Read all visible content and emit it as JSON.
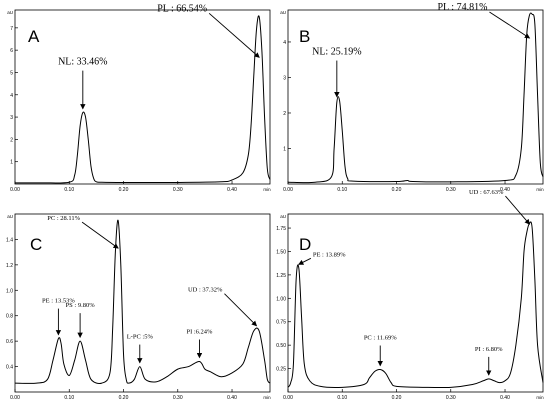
{
  "figure": {
    "panels": [
      {
        "letter": "A",
        "unit": "aU",
        "x_end_label": "min"
      },
      {
        "letter": "B",
        "unit": "aU",
        "x_end_label": "min"
      },
      {
        "letter": "C",
        "unit": "aU",
        "x_end_label": "min"
      },
      {
        "letter": "D",
        "unit": "aU",
        "x_end_label": "min"
      }
    ]
  },
  "chart_data": [
    {
      "type": "line",
      "panel": "A",
      "xlim": [
        0,
        0.47
      ],
      "ylim": [
        0,
        7.8
      ],
      "xticks": [
        "0.00",
        "0.10",
        "0.20",
        "0.30",
        "0.40"
      ],
      "yticks": [
        "1",
        "2",
        "3",
        "4",
        "5",
        "6",
        "7"
      ],
      "x": [
        0.0,
        0.05,
        0.1,
        0.11,
        0.115,
        0.12,
        0.125,
        0.13,
        0.135,
        0.14,
        0.145,
        0.15,
        0.16,
        0.2,
        0.3,
        0.38,
        0.4,
        0.42,
        0.43,
        0.435,
        0.44,
        0.445,
        0.45,
        0.455,
        0.46,
        0.465,
        0.47
      ],
      "y": [
        0.05,
        0.05,
        0.08,
        0.4,
        1.3,
        2.6,
        3.2,
        3.0,
        2.0,
        0.8,
        0.25,
        0.1,
        0.08,
        0.07,
        0.07,
        0.1,
        0.18,
        0.5,
        1.3,
        2.6,
        4.8,
        6.9,
        7.5,
        6.0,
        3.0,
        0.7,
        0.2
      ],
      "annotations": [
        {
          "text": "NL: 33.46%",
          "x": 0.125,
          "y": 3.2
        },
        {
          "text": "PL : 66.54%",
          "x": 0.45,
          "y": 5.5
        }
      ]
    },
    {
      "type": "line",
      "panel": "B",
      "xlim": [
        0,
        0.47
      ],
      "ylim": [
        0,
        4.9
      ],
      "xticks": [
        "0.00",
        "0.10",
        "0.20",
        "0.30",
        "0.40"
      ],
      "yticks": [
        "1",
        "2",
        "3",
        "4"
      ],
      "x": [
        0.0,
        0.05,
        0.08,
        0.085,
        0.09,
        0.095,
        0.1,
        0.105,
        0.11,
        0.12,
        0.2,
        0.22,
        0.23,
        0.3,
        0.4,
        0.42,
        0.43,
        0.435,
        0.44,
        0.445,
        0.45,
        0.455,
        0.46,
        0.465,
        0.47
      ],
      "y": [
        0.05,
        0.05,
        0.2,
        1.0,
        2.3,
        2.35,
        1.5,
        0.5,
        0.15,
        0.08,
        0.07,
        0.1,
        0.07,
        0.06,
        0.1,
        0.25,
        1.0,
        2.5,
        4.2,
        4.75,
        4.78,
        4.5,
        2.5,
        0.6,
        0.2
      ],
      "annotations": [
        {
          "text": "NL: 25.19%",
          "x": 0.09,
          "y": 2.35
        },
        {
          "text": "PL : 74.81%",
          "x": 0.445,
          "y": 4.0
        }
      ]
    },
    {
      "type": "line",
      "panel": "C",
      "xlim": [
        0,
        0.47
      ],
      "ylim": [
        0.2,
        1.6
      ],
      "xticks": [
        "0.00",
        "0.10",
        "0.20",
        "0.30",
        "0.40"
      ],
      "yticks": [
        "0.4",
        "0.6",
        "0.8",
        "1.0",
        "1.2",
        "1.4"
      ],
      "x": [
        0.0,
        0.04,
        0.06,
        0.07,
        0.08,
        0.085,
        0.09,
        0.1,
        0.11,
        0.12,
        0.13,
        0.14,
        0.16,
        0.175,
        0.18,
        0.185,
        0.19,
        0.195,
        0.2,
        0.205,
        0.21,
        0.22,
        0.23,
        0.24,
        0.26,
        0.28,
        0.3,
        0.32,
        0.34,
        0.35,
        0.36,
        0.38,
        0.4,
        0.42,
        0.43,
        0.44,
        0.45,
        0.46,
        0.465,
        0.47
      ],
      "y": [
        0.27,
        0.27,
        0.3,
        0.45,
        0.62,
        0.58,
        0.42,
        0.33,
        0.45,
        0.6,
        0.45,
        0.3,
        0.27,
        0.35,
        0.7,
        1.3,
        1.55,
        1.2,
        0.5,
        0.3,
        0.27,
        0.3,
        0.4,
        0.3,
        0.28,
        0.32,
        0.38,
        0.4,
        0.44,
        0.38,
        0.36,
        0.32,
        0.35,
        0.42,
        0.55,
        0.68,
        0.68,
        0.45,
        0.3,
        0.27
      ],
      "annotations": [
        {
          "text": "PE : 13.53%",
          "x": 0.08,
          "y": 0.62
        },
        {
          "text": "PS : 9.80%",
          "x": 0.12,
          "y": 0.6
        },
        {
          "text": "PC : 28.11%",
          "x": 0.19,
          "y": 1.3
        },
        {
          "text": "L-PC :5%",
          "x": 0.23,
          "y": 0.4
        },
        {
          "text": "PI :6.24%",
          "x": 0.34,
          "y": 0.44
        },
        {
          "text": "UD : 37.32%",
          "x": 0.445,
          "y": 0.69
        }
      ]
    },
    {
      "type": "line",
      "panel": "D",
      "xlim": [
        0,
        0.47
      ],
      "ylim": [
        0,
        1.9
      ],
      "xticks": [
        "0.00",
        "0.10",
        "0.20",
        "0.30",
        "0.40"
      ],
      "yticks": [
        "0.25",
        "0.50",
        "0.75",
        "1.00",
        "1.25",
        "1.50",
        "1.75"
      ],
      "x": [
        0.0,
        0.005,
        0.01,
        0.015,
        0.02,
        0.025,
        0.03,
        0.04,
        0.06,
        0.1,
        0.14,
        0.15,
        0.16,
        0.17,
        0.18,
        0.19,
        0.2,
        0.25,
        0.3,
        0.34,
        0.36,
        0.37,
        0.38,
        0.39,
        0.4,
        0.41,
        0.42,
        0.43,
        0.435,
        0.44,
        0.445,
        0.45,
        0.455,
        0.46,
        0.47
      ],
      "y": [
        0.05,
        0.1,
        0.3,
        1.2,
        1.32,
        0.8,
        0.3,
        0.12,
        0.06,
        0.05,
        0.08,
        0.15,
        0.22,
        0.24,
        0.2,
        0.1,
        0.06,
        0.05,
        0.05,
        0.08,
        0.12,
        0.14,
        0.12,
        0.1,
        0.12,
        0.2,
        0.5,
        1.0,
        1.5,
        1.7,
        1.8,
        1.75,
        1.2,
        0.5,
        0.1
      ],
      "annotations": [
        {
          "text": "PE : 13.89%",
          "x": 0.02,
          "y": 1.32
        },
        {
          "text": "PC : 11.69%",
          "x": 0.17,
          "y": 0.24
        },
        {
          "text": "PI : 6.80%",
          "x": 0.37,
          "y": 0.14
        },
        {
          "text": "UD : 67.63%",
          "x": 0.445,
          "y": 1.75
        }
      ]
    }
  ]
}
